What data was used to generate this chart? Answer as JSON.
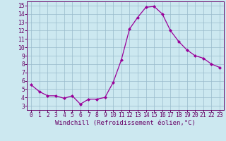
{
  "x": [
    0,
    1,
    2,
    3,
    4,
    5,
    6,
    7,
    8,
    9,
    10,
    11,
    12,
    13,
    14,
    15,
    16,
    17,
    18,
    19,
    20,
    21,
    22,
    23
  ],
  "y": [
    5.5,
    4.7,
    4.2,
    4.2,
    3.9,
    4.2,
    3.2,
    3.8,
    3.8,
    4.0,
    5.8,
    8.5,
    12.2,
    13.6,
    14.8,
    14.9,
    14.0,
    12.0,
    10.7,
    9.7,
    9.0,
    8.7,
    8.0,
    7.6
  ],
  "line_color": "#990099",
  "marker": "D",
  "marker_size": 2.0,
  "bg_color": "#cce8f0",
  "grid_color": "#99bbcc",
  "xlabel": "Windchill (Refroidissement éolien,°C)",
  "xlabel_fontsize": 6.5,
  "tick_fontsize": 5.8,
  "xlim": [
    -0.5,
    23.5
  ],
  "ylim": [
    2.5,
    15.5
  ],
  "yticks": [
    3,
    4,
    5,
    6,
    7,
    8,
    9,
    10,
    11,
    12,
    13,
    14,
    15
  ],
  "xticks": [
    0,
    1,
    2,
    3,
    4,
    5,
    6,
    7,
    8,
    9,
    10,
    11,
    12,
    13,
    14,
    15,
    16,
    17,
    18,
    19,
    20,
    21,
    22,
    23
  ]
}
